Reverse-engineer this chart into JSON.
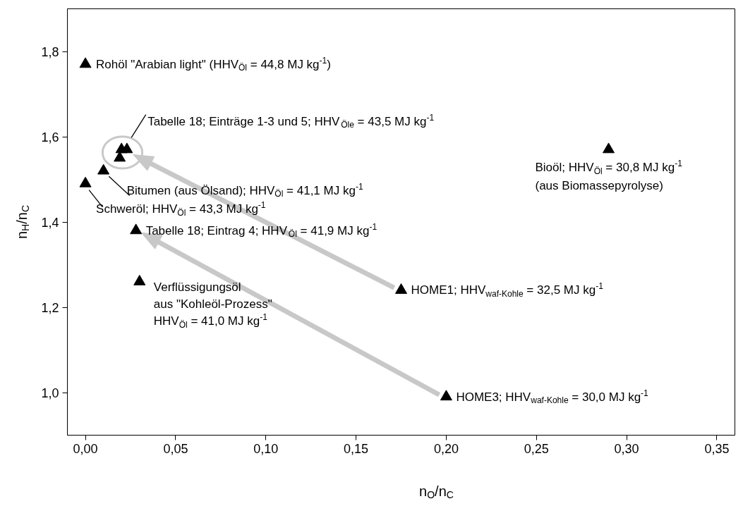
{
  "chart_data": {
    "type": "scatter",
    "marker": "triangle",
    "xlabel": "n$_{O}$/n$_{C}$",
    "ylabel": "n$_{H}$/n$_{C}$",
    "xlim": [
      -0.01,
      0.36
    ],
    "ylim": [
      0.9,
      1.9
    ],
    "xticks": [
      {
        "value": 0,
        "label": "0,00"
      },
      {
        "value": 0.05,
        "label": "0,05"
      },
      {
        "value": 0.1,
        "label": "0,10"
      },
      {
        "value": 0.15,
        "label": "0,15"
      },
      {
        "value": 0.2,
        "label": "0,20"
      },
      {
        "value": 0.25,
        "label": "0,25"
      },
      {
        "value": 0.3,
        "label": "0,30"
      },
      {
        "value": 0.35,
        "label": "0,35"
      }
    ],
    "yticks": [
      {
        "value": 1.0,
        "label": "1,0"
      },
      {
        "value": 1.2,
        "label": "1,2"
      },
      {
        "value": 1.4,
        "label": "1,4"
      },
      {
        "value": 1.6,
        "label": "1,6"
      },
      {
        "value": 1.8,
        "label": "1,8"
      }
    ],
    "grid": false,
    "series": [
      {
        "color": "#000000",
        "x": [
          0,
          0.02,
          0.023,
          0.019,
          0.01,
          0,
          0.028,
          0.03,
          0.175,
          0.2,
          0.29
        ],
        "values": [
          1.77,
          1.57,
          1.57,
          1.55,
          1.52,
          1.49,
          1.38,
          1.26,
          1.24,
          0.99,
          1.57
        ]
      }
    ],
    "annotations": [
      {
        "text": "Rohöl \"Arabian light\" (HHV$_{Öl}$ = 44,8 MJ kg$^{-1}$)",
        "x": 0,
        "y": 1.77
      },
      {
        "text": "Tabelle 18; Einträge 1-3 und 5; HHV$_{Öle}$ = 43,5 MJ kg$^{-1}$",
        "x": 0.02,
        "y": 1.57
      },
      {
        "text": "Bitumen (aus Ölsand); HHV$_{Öl}$ = 41,1 MJ kg$^{-1}$",
        "x": 0.01,
        "y": 1.52
      },
      {
        "text": "Schweröl; HHV$_{Öl}$ = 43,3 MJ kg$^{-1}$",
        "x": 0,
        "y": 1.49
      },
      {
        "text": "Tabelle 18; Eintrag 4; HHV$_{Öl}$ = 41,9 MJ kg$^{-1}$",
        "x": 0.028,
        "y": 1.38
      },
      {
        "text": "Verflüssigungsöl\naus \"Kohleöl-Prozess\"\nHHV$_{Öl}$ = 41,0 MJ kg$^{-1}$",
        "x": 0.03,
        "y": 1.26
      },
      {
        "text": "HOME1; HHV$_{waf-Kohle}$ = 32,5 MJ kg$^{-1}$",
        "x": 0.175,
        "y": 1.24
      },
      {
        "text": "HOME3; HHV$_{waf-Kohle}$ = 30,0 MJ kg$^{-1}$",
        "x": 0.2,
        "y": 0.99
      },
      "Bioöl; HHV$_{Öl}$ = 30,8 MJ kg$^{-1}$\n(aus Biomassepyrolyse)"
    ]
  }
}
